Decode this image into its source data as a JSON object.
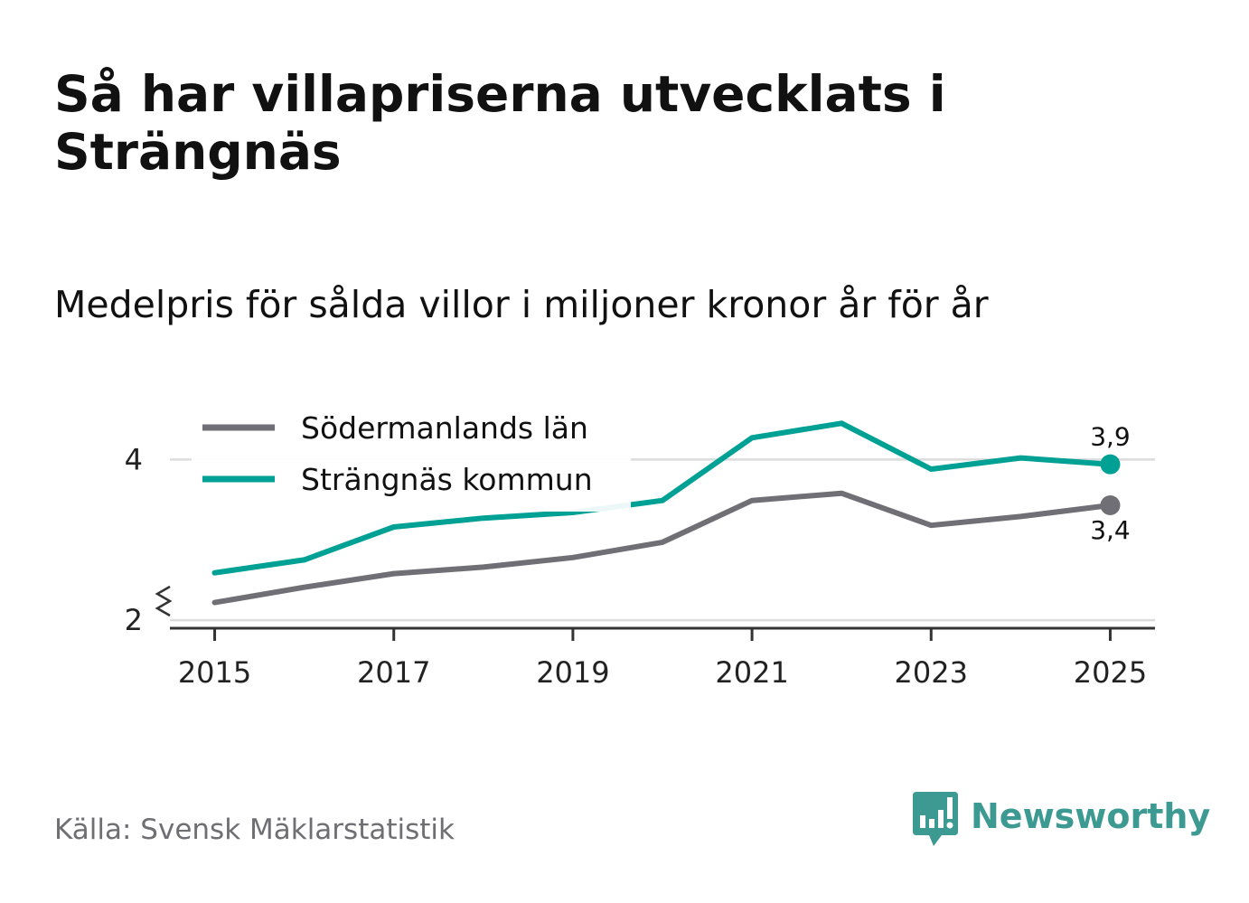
{
  "title": "Så har villapriserna utvecklats i Strängnäs",
  "subtitle": "Medelpris för sålda villor i miljoner kronor år för år",
  "source": "Källa: Svensk Mäklarstatistik",
  "brand": {
    "name": "Newsworthy",
    "icon": "newsworthy-logo-icon",
    "color": "#3d9a92"
  },
  "chart_data": {
    "type": "line",
    "title": "Så har villapriserna utvecklats i Strängnäs",
    "subtitle": "Medelpris för sålda villor i miljoner kronor år för år",
    "xlabel": "",
    "ylabel": "",
    "x": [
      2015,
      2016,
      2017,
      2018,
      2019,
      2020,
      2021,
      2022,
      2023,
      2024,
      2025
    ],
    "x_ticks": [
      "2015",
      "2017",
      "2019",
      "2021",
      "2023",
      "2025"
    ],
    "y_ticks": [
      "2",
      "4"
    ],
    "ylim": [
      1.9,
      4.6
    ],
    "xlim": [
      2014.5,
      2025.5
    ],
    "grid": true,
    "axis_break": true,
    "legend_position": "top-left",
    "series": [
      {
        "name": "Södermanlands län",
        "color": "#6f6f75",
        "values": [
          2.22,
          2.41,
          2.58,
          2.66,
          2.78,
          2.97,
          3.49,
          3.58,
          3.18,
          3.29,
          3.43
        ],
        "end_label": "3,4"
      },
      {
        "name": "Strängnäs kommun",
        "color": "#00a195",
        "values": [
          2.59,
          2.75,
          3.16,
          3.27,
          3.34,
          3.49,
          4.27,
          4.45,
          3.88,
          4.02,
          3.94
        ],
        "end_label": "3,9"
      }
    ]
  }
}
